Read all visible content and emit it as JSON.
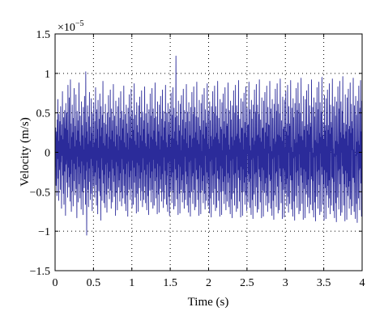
{
  "chart_data": {
    "type": "line",
    "title": "",
    "xlabel": "Time (s)",
    "ylabel": "Velocity (m/s)",
    "y_exponent_label": "×10",
    "y_exponent_power": "−5",
    "xlim": [
      0,
      4
    ],
    "ylim": [
      -1.5,
      1.5
    ],
    "x_ticks": [
      0,
      0.5,
      1,
      1.5,
      2,
      2.5,
      3,
      3.5,
      4
    ],
    "x_tick_labels": [
      "0",
      "0.5",
      "1",
      "1.5",
      "2",
      "2.5",
      "3",
      "3.5",
      "4"
    ],
    "y_ticks": [
      -1.5,
      -1,
      -0.5,
      0,
      0.5,
      1,
      1.5
    ],
    "y_tick_labels": [
      "−1.5",
      "−1",
      "−0.5",
      "0",
      "0.5",
      "1",
      "1.5"
    ],
    "grid": true,
    "grid_style": "dotted",
    "line_color": "#2b2b9a",
    "series": [
      {
        "x_start": 0,
        "x_step": 0.005,
        "values": [
          0.12,
          -0.18,
          0.31,
          -0.42,
          0.05,
          0.26,
          -0.55,
          0.41,
          -0.08,
          0.67,
          -0.33,
          0.14,
          -0.61,
          0.48,
          -0.22,
          0.02,
          0.39,
          -0.47,
          0.58,
          -0.12,
          0.21,
          -0.71,
          0.35,
          -0.04,
          0.77,
          -0.29,
          0.16,
          -0.52,
          0.44,
          -0.66,
          0.09,
          0.53,
          -0.24,
          0.3,
          -0.8,
          0.62,
          -0.15,
          0.06,
          0.5,
          -0.38,
          0.28,
          -0.57,
          0.85,
          -0.19,
          0.11,
          -0.44,
          0.69,
          -0.31,
          0.04,
          -0.62,
          0.92,
          -0.27,
          0.36,
          -0.75,
          0.19,
          -0.09,
          0.6,
          -0.49,
          0.25,
          -0.68,
          0.43,
          -0.14,
          0.81,
          -0.36,
          0.07,
          -0.54,
          0.33,
          -0.21,
          0.73,
          -0.46,
          0.15,
          -0.83,
          0.52,
          -0.05,
          0.27,
          -0.63,
          0.4,
          -0.18,
          0.88,
          -0.4,
          0.13,
          -0.58,
          0.46,
          -0.26,
          0.08,
          -0.72,
          0.64,
          -0.11,
          0.34,
          -0.5,
          0.21,
          -0.79,
          0.57,
          -0.16,
          0.03,
          -0.45,
          0.71,
          -0.34,
          0.18,
          -0.66,
          1.02,
          -0.23,
          0.38,
          -1.05,
          0.26,
          -0.12,
          0.59,
          -0.47,
          0.1,
          -0.69,
          0.45,
          -0.2,
          0.76,
          -0.37,
          0.14,
          -0.6,
          0.32,
          -0.08,
          0.68,
          -0.52,
          0.24,
          -0.74,
          0.49,
          -0.17,
          0.06,
          -0.43,
          0.63,
          -0.3,
          0.12,
          -0.57,
          0.39,
          -0.25,
          0.82,
          -0.41,
          0.17,
          -0.67,
          0.54,
          -0.1,
          0.29,
          -0.78,
          0.66,
          -0.19,
          0.05,
          -0.49,
          0.42,
          -0.33,
          0.74,
          -0.55,
          0.2,
          -0.86,
          0.58,
          -0.07,
          0.31,
          -0.61,
          0.47,
          -0.22,
          0.9,
          -0.39,
          0.11,
          -0.64,
          0.37,
          -0.28,
          0.08,
          -0.7,
          0.61,
          -0.15,
          0.35,
          -0.53,
          0.23,
          -0.76,
          0.5,
          -0.13,
          0.04,
          -0.46,
          0.72,
          -0.32,
          0.19,
          -0.59,
          0.44,
          -0.24,
          0.79,
          -0.48,
          0.16,
          -0.71,
          0.55,
          -0.09,
          0.27,
          -0.63,
          0.4,
          -0.2,
          0.86,
          -0.37,
          0.13,
          -0.56,
          0.46,
          -0.29,
          0.07,
          -0.8,
          0.65,
          -0.12,
          0.33,
          -0.51,
          0.22,
          -0.73,
          0.58,
          -0.17,
          0.02,
          -0.44,
          0.69,
          -0.35,
          0.2,
          -0.62,
          0.43,
          -0.26,
          0.77,
          -0.5,
          0.15,
          -0.68,
          0.52,
          -0.08,
          0.3,
          -0.58,
          0.41,
          -0.21,
          0.84,
          -0.42,
          0.12,
          -0.65,
          0.48,
          -0.27,
          0.06,
          -0.74,
          0.6,
          -0.14,
          0.36,
          -0.54,
          0.24,
          -0.81,
          0.56,
          -0.11,
          0.03,
          -0.47,
          0.73,
          -0.31,
          0.18,
          -0.6,
          0.45,
          -0.23,
          0.8,
          -0.46,
          0.17,
          -0.7,
          0.53,
          -0.1,
          0.28,
          -0.66,
          0.42,
          -0.19,
          0.87,
          -0.38,
          0.14,
          -0.57,
          0.47,
          -0.3,
          0.09,
          -0.77,
          0.63,
          -0.13,
          0.34,
          -0.52,
          0.25,
          -0.75,
          0.59,
          -0.16,
          0.05,
          -0.45,
          0.7,
          -0.33,
          0.21,
          -0.61,
          0.44,
          -0.25,
          0.78,
          -0.49,
          0.14,
          -0.69,
          0.51,
          -0.07,
          0.29,
          -0.6,
          0.4,
          -0.22,
          0.83,
          -0.43,
          0.11,
          -0.64,
          0.49,
          -0.28,
          0.07,
          -0.73,
          0.61,
          -0.15,
          0.37,
          -0.55,
          0.23,
          -0.79,
          0.54,
          -0.12,
          0.04,
          -0.48,
          0.74,
          -0.32,
          0.19,
          -0.63,
          0.46,
          -0.24,
          0.81,
          -0.47,
          0.16,
          -0.71,
          0.55,
          -0.09,
          0.27,
          -0.67,
          0.43,
          -0.2,
          0.88,
          -0.36,
          0.13,
          -0.58,
          0.45,
          -0.31,
          0.08,
          -0.78,
          0.64,
          -0.14,
          0.35,
          -0.53,
          0.26,
          -0.76,
          0.6,
          -0.17,
          0.03,
          -0.46,
          0.71,
          -0.34,
          0.2,
          -0.62,
          0.42,
          -0.27,
          0.79,
          -0.5,
          0.15,
          -0.7,
          0.52,
          -0.06,
          0.31,
          -0.59,
          0.39,
          -0.23,
          0.85,
          -0.41,
          0.12,
          -0.66,
          0.5,
          -0.29,
          0.06,
          -0.75,
          0.62,
          -0.13,
          0.38,
          -0.56,
          0.22,
          -0.8,
          0.55,
          -0.11,
          0.05,
          -0.49,
          0.75,
          -0.31,
          0.18,
          -0.64,
          0.47,
          -0.25,
          0.82,
          -0.48,
          0.17,
          -0.72,
          0.56,
          -0.08,
          0.26,
          -0.68,
          0.44,
          -0.21,
          1.22,
          -0.35,
          0.14,
          -0.59,
          0.46,
          -0.32,
          0.09,
          -0.79,
          0.65,
          -0.15,
          0.34,
          -0.52,
          0.27,
          -0.77,
          0.61,
          -0.18,
          0.02,
          -0.47,
          0.72,
          -0.35,
          0.21,
          -0.63,
          0.41,
          -0.28,
          0.8,
          -0.51,
          0.16,
          -0.71,
          0.53,
          -0.05,
          0.3,
          -0.6,
          0.38,
          -0.24,
          0.86,
          -0.4,
          0.11,
          -0.67,
          0.51,
          -0.3,
          0.05,
          -0.76,
          0.63,
          -0.12,
          0.39,
          -0.57,
          0.21,
          -0.81,
          0.57,
          -0.1,
          0.06,
          -0.5,
          0.76,
          -0.3,
          0.17,
          -0.65,
          0.48,
          -0.26,
          0.83,
          -0.47,
          0.18,
          -0.73,
          0.57,
          -0.07,
          0.25,
          -0.69,
          0.45,
          -0.22,
          0.89,
          -0.34,
          0.15,
          -0.6,
          0.44,
          -0.33,
          0.1,
          -0.8,
          0.66,
          -0.16,
          0.33,
          -0.51,
          0.28,
          -0.78,
          0.62,
          -0.19,
          0.01,
          -0.48,
          0.73,
          -0.36,
          0.22,
          -0.64,
          0.4,
          -0.29,
          0.81,
          -0.52,
          0.17,
          -0.72,
          0.54,
          -0.04,
          0.32,
          -0.61,
          0.37,
          -0.25,
          0.87,
          -0.39,
          0.1,
          -0.68,
          0.52,
          -0.31,
          0.04,
          -0.77,
          0.64,
          -0.11,
          0.4,
          -0.58,
          0.2,
          -0.82,
          0.58,
          -0.09,
          0.07,
          -0.51,
          0.77,
          -0.29,
          0.16,
          -0.66,
          0.49,
          -0.27,
          0.84,
          -0.46,
          0.19,
          -0.74,
          0.58,
          -0.06,
          0.24,
          -0.7,
          0.46,
          -0.23,
          0.9,
          -0.33,
          0.16,
          -0.61,
          0.43,
          -0.34,
          0.11,
          -0.81,
          0.67,
          -0.17,
          0.32,
          -0.5,
          0.29,
          -0.79,
          0.63,
          -0.2,
          0.02,
          -0.49,
          0.74,
          -0.37,
          0.23,
          -0.65,
          0.39,
          -0.3,
          0.82,
          -0.53,
          0.18,
          -0.73,
          0.55,
          -0.03,
          0.33,
          -0.62,
          0.36,
          -0.26,
          0.88,
          -0.38,
          0.09,
          -0.69,
          0.53,
          -0.32,
          0.03,
          -0.78,
          0.65,
          -0.1,
          0.41,
          -0.59,
          0.19,
          -0.83,
          0.59,
          -0.08,
          0.08,
          -0.52,
          0.78,
          -0.28,
          0.15,
          -0.67,
          0.5,
          -0.26,
          0.85,
          -0.45,
          0.2,
          -0.75,
          0.59,
          -0.05,
          0.23,
          -0.71,
          0.47,
          -0.22,
          0.91,
          -0.32,
          0.17,
          -0.62,
          0.42,
          -0.35,
          0.12,
          -0.82,
          0.68,
          -0.18,
          0.31,
          -0.49,
          0.3,
          -0.8,
          0.64,
          -0.21,
          0.03,
          -0.5,
          0.75,
          -0.38,
          0.24,
          -0.66,
          0.38,
          -0.31,
          0.83,
          -0.54,
          0.19,
          -0.74,
          0.56,
          -0.02,
          0.34,
          -0.63,
          0.35,
          -0.27,
          0.89,
          -0.37,
          0.08,
          -0.7,
          0.54,
          -0.33,
          0.02,
          -0.79,
          0.66,
          -0.09,
          0.42,
          -0.6,
          0.18,
          -0.84,
          0.6,
          -0.07,
          0.09,
          -0.53,
          0.79,
          -0.27,
          0.14,
          -0.68,
          0.51,
          -0.25,
          0.86,
          -0.44,
          0.21,
          -0.76,
          0.6,
          -0.04,
          0.22,
          -0.72,
          0.48,
          -0.21,
          0.92,
          -0.31,
          0.18,
          -0.63,
          0.41,
          -0.36,
          0.13,
          -0.83,
          0.69,
          -0.19,
          0.3,
          -0.48,
          0.31,
          -0.81,
          0.65,
          -0.22,
          0.04,
          -0.51,
          0.76,
          -0.39,
          0.25,
          -0.67,
          0.37,
          -0.32,
          0.84,
          -0.55,
          0.2,
          -0.75,
          0.57,
          -0.01,
          0.35,
          -0.64,
          0.34,
          -0.28,
          0.9,
          -0.36,
          0.07,
          -0.71,
          0.55,
          -0.34,
          0.01,
          -0.8,
          0.67,
          -0.08,
          0.43,
          -0.61,
          0.17,
          -0.85,
          0.61,
          -0.06,
          0.1,
          -0.54,
          0.8,
          -0.26,
          0.13,
          -0.69,
          0.52,
          -0.24,
          0.87,
          -0.43,
          0.22,
          -0.77,
          0.61,
          -0.03,
          0.21,
          -0.73,
          0.49,
          -0.2,
          0.93,
          -0.3,
          0.19,
          -0.64,
          0.4,
          -0.37,
          0.14,
          -0.84,
          0.7,
          -0.2,
          0.29,
          -0.47,
          0.32,
          -0.82,
          0.66,
          -0.23,
          0.05,
          -0.52,
          0.77,
          -0.4,
          0.26,
          -0.68,
          0.36,
          -0.33,
          0.85,
          -0.56,
          0.21,
          -0.76,
          0.58,
          0.0,
          0.36,
          -0.65,
          0.33,
          -0.29,
          0.91,
          -0.35,
          0.06,
          -0.72,
          0.56,
          -0.35,
          0.0,
          -0.81,
          0.68,
          -0.07,
          0.44,
          -0.62,
          0.16,
          -0.86,
          0.62,
          -0.05,
          0.11,
          -0.55,
          0.81,
          -0.25,
          0.12,
          -0.7,
          0.53,
          -0.23,
          0.88,
          -0.42,
          0.23,
          -0.78,
          0.62,
          -0.02,
          0.2,
          -0.74,
          0.5,
          -0.19,
          0.94,
          -0.29,
          0.2,
          -0.65,
          0.39,
          -0.38,
          0.15,
          -0.85,
          0.71,
          -0.21,
          0.28,
          -0.46,
          0.33,
          -0.83,
          0.67,
          -0.24,
          0.06,
          -0.53,
          0.78,
          -0.41,
          0.27,
          -0.69,
          0.35,
          -0.34,
          0.86,
          -0.57,
          0.22,
          -0.77,
          0.59,
          0.01,
          0.37,
          -0.66,
          0.32,
          -0.3,
          0.92,
          -0.34,
          0.05,
          -0.73,
          0.57,
          -0.36,
          -0.01,
          -0.82,
          0.69,
          -0.06,
          0.45,
          -0.63,
          0.15,
          -0.87,
          0.63,
          -0.04,
          0.12,
          -0.56,
          0.82,
          -0.24,
          0.11,
          -0.71,
          0.54,
          -0.22,
          0.89,
          -0.41,
          0.24,
          -0.79,
          0.63,
          -0.01,
          0.19,
          -0.75,
          0.51,
          -0.18,
          0.95,
          -0.28,
          0.21,
          -0.66,
          0.38,
          -0.39,
          0.16,
          -0.86,
          0.72,
          -0.22,
          0.27,
          -0.45,
          0.34,
          -0.84,
          0.68,
          -0.25,
          0.07,
          -0.54,
          0.79,
          -0.42,
          0.28,
          -0.7,
          0.34,
          -0.35,
          0.87,
          -0.58,
          0.23,
          -0.78,
          0.6,
          0.02,
          0.38,
          -0.67,
          0.31,
          -0.31,
          0.93,
          -0.33,
          0.04,
          -0.74,
          0.58,
          -0.37,
          -0.02,
          -0.83,
          0.7,
          -0.05,
          0.46,
          -0.64,
          0.14,
          -0.88,
          0.64,
          -0.03,
          0.13,
          -0.57,
          0.83,
          -0.23,
          0.1,
          -0.72,
          0.55,
          -0.21,
          0.9,
          -0.4,
          0.25,
          -0.8,
          0.64,
          0.0,
          0.18,
          -0.76,
          0.52,
          -0.17,
          0.96,
          -0.27,
          0.22,
          -0.67,
          0.37,
          -0.4,
          0.17,
          -0.87,
          0.73,
          -0.23,
          0.26,
          -0.44,
          0.35,
          -0.85,
          0.69,
          -0.26,
          0.08,
          -0.55,
          0.8,
          -0.43,
          0.29,
          -0.71,
          0.33,
          -0.36,
          0.88,
          -0.59,
          0.24,
          -0.79,
          0.61,
          0.03,
          0.39,
          -0.68,
          0.3,
          -0.32,
          0.94,
          -0.32,
          0.03,
          -0.75,
          0.59,
          -0.38,
          -0.03,
          -0.84,
          0.71,
          -0.04,
          0.47,
          -0.65,
          0.13,
          -0.89,
          0.65,
          -0.02,
          0.14,
          -0.58,
          0.84,
          -0.22,
          0.09,
          -0.73,
          0.56,
          -0.2,
          0.91,
          -0.39,
          0.26,
          -0.81,
          0.65,
          0.01
        ]
      }
    ]
  }
}
